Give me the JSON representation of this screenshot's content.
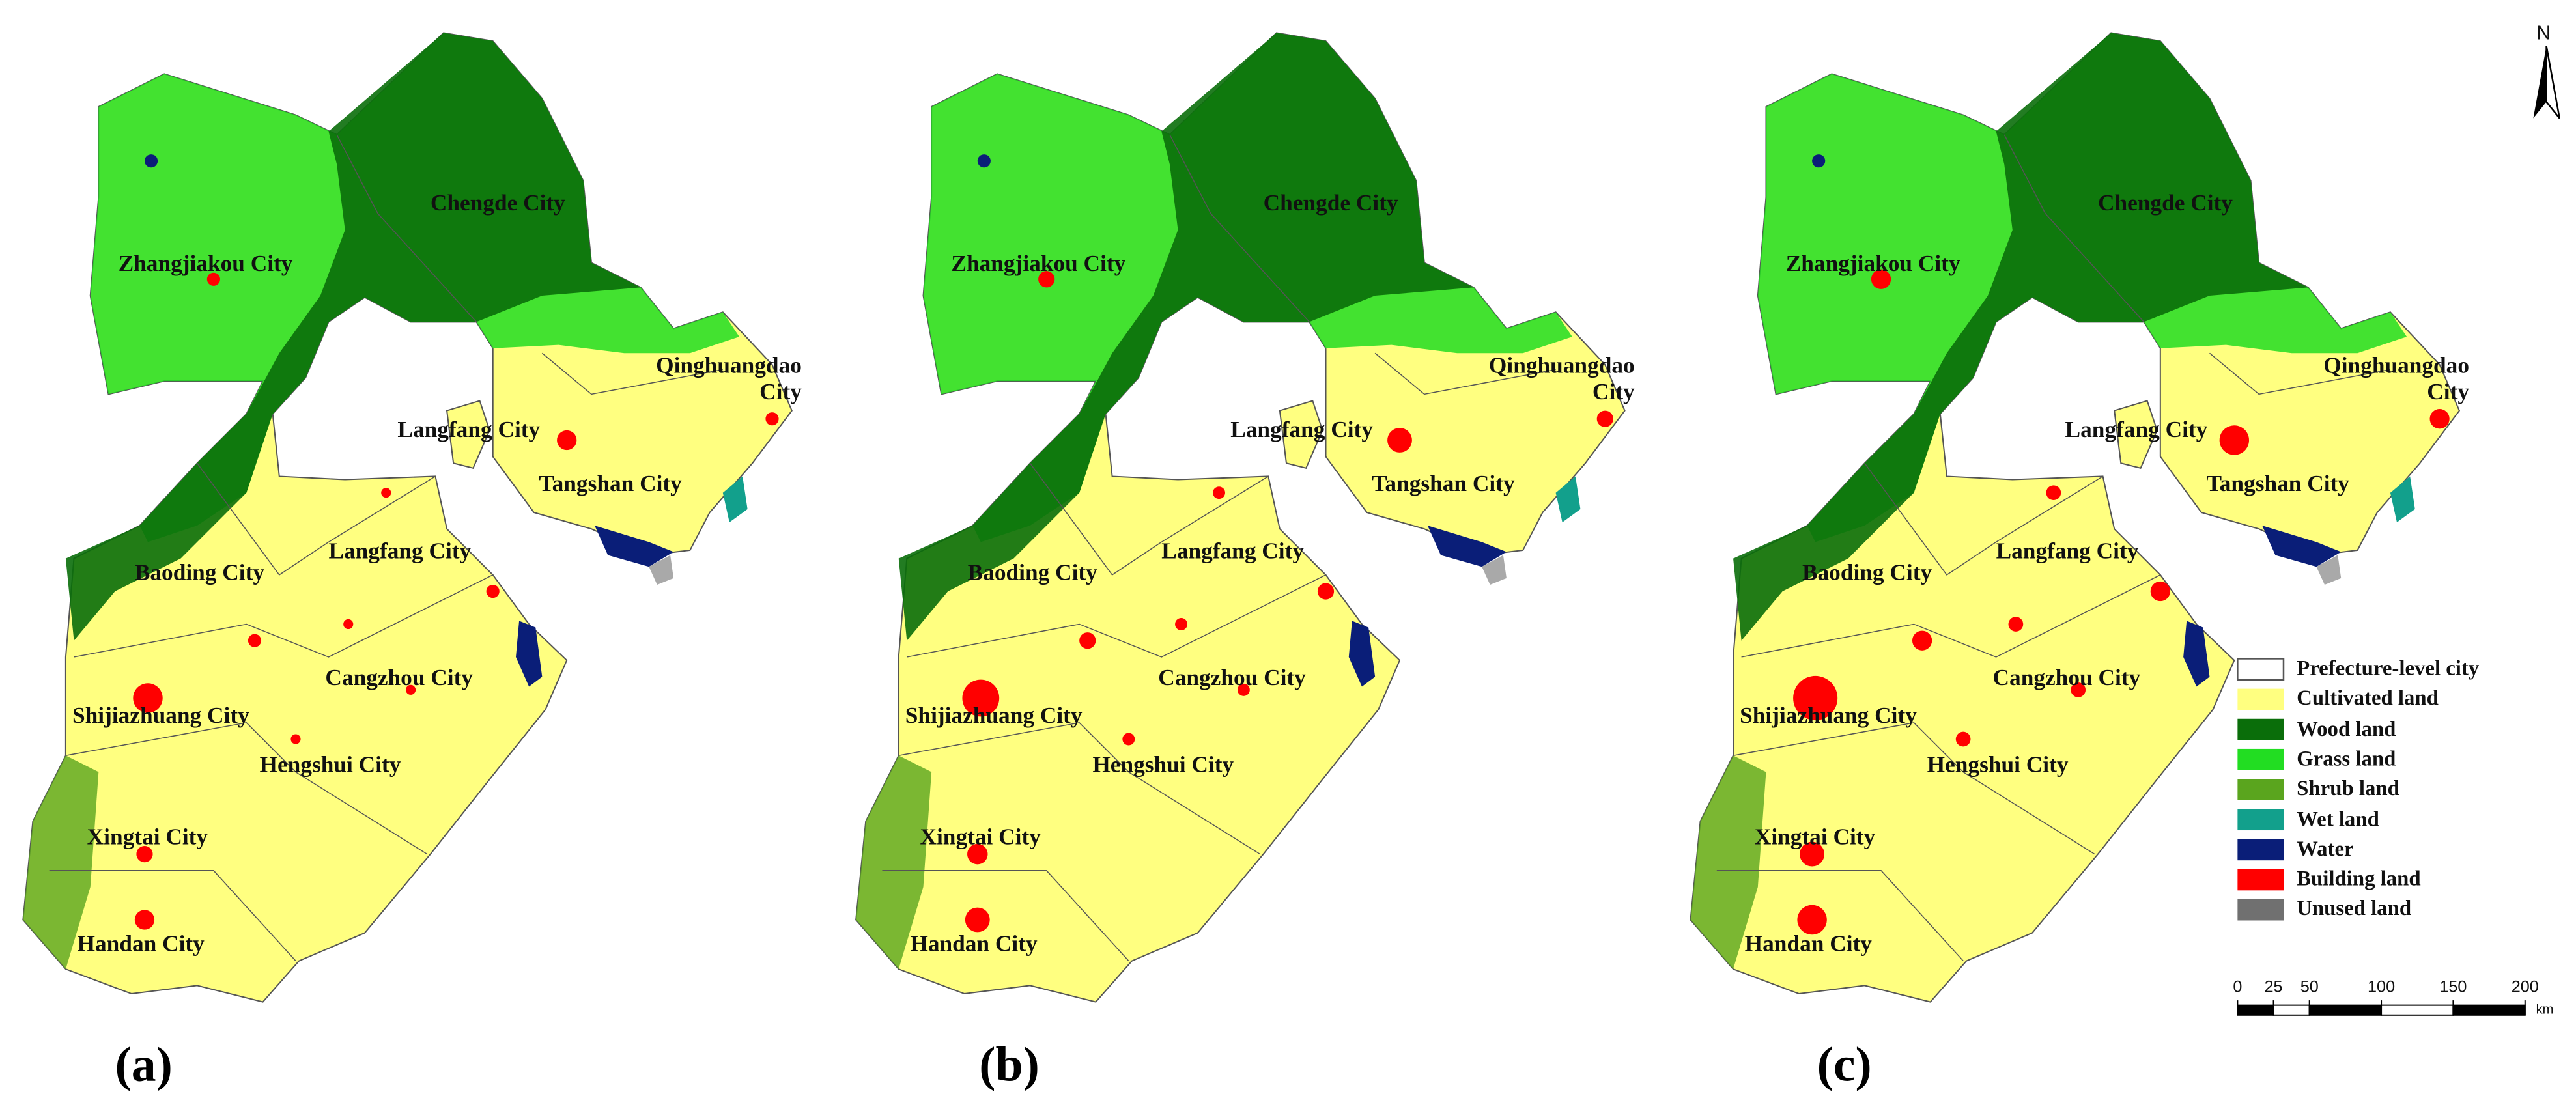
{
  "north": "N",
  "cities": [
    "Zhangjiakou City",
    "Chengde City",
    "Qinghuangdao City",
    "Langfang City",
    "Tangshan City",
    "Langfang City",
    "Baoding City",
    "Cangzhou City",
    "Shijiazhuang City",
    "Hengshui City",
    "Xingtai City",
    "Handan City"
  ],
  "panels": [
    {
      "label": "(a)"
    },
    {
      "label": "(b)"
    },
    {
      "label": "(c)"
    }
  ],
  "legend": [
    {
      "label": "Prefecture-level city",
      "color": "#ffffff"
    },
    {
      "label": "Cultivated land",
      "color": "#ffff80"
    },
    {
      "label": "Wood land",
      "color": "#0a6e0a"
    },
    {
      "label": "Grass land",
      "color": "#22dd22"
    },
    {
      "label": "Shrub land",
      "color": "#5aa51e"
    },
    {
      "label": "Wet land",
      "color": "#12a08c"
    },
    {
      "label": "Water",
      "color": "#0a1e78"
    },
    {
      "label": "Building land",
      "color": "#ff0000"
    },
    {
      "label": "Unused land",
      "color": "#707070"
    }
  ],
  "scale_bar": {
    "ticks": [
      0,
      25,
      50,
      100,
      150,
      200
    ],
    "unit": "km"
  }
}
